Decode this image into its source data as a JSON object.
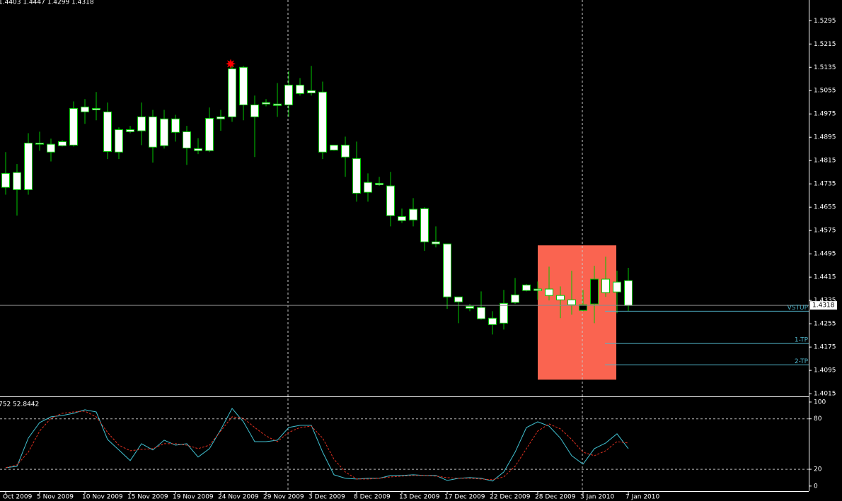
{
  "chart_data": [
    {
      "type": "candlestick",
      "title": "1.4403 1.4447 1.4299 1.4318",
      "categories": [
        "Oct 2009",
        null,
        null,
        "5 Nov 2009",
        null,
        null,
        null,
        "10 Nov 2009",
        null,
        null,
        null,
        "15 Nov 2009",
        null,
        null,
        null,
        "19 Nov 2009",
        null,
        null,
        null,
        "24 Nov 2009",
        null,
        null,
        null,
        "29 Nov 2009",
        null,
        null,
        null,
        "3 Dec 2009",
        null,
        null,
        null,
        "8 Dec 2009",
        null,
        null,
        null,
        "13 Dec 2009",
        null,
        null,
        null,
        "17 Dec 2009",
        null,
        null,
        null,
        "22 Dec 2009",
        null,
        null,
        null,
        "28 Dec 2009",
        null,
        null,
        null,
        "3 Jan 2010",
        null,
        null,
        null,
        "7 Jan 2010"
      ],
      "open": [
        1.4771,
        1.4774,
        1.4875,
        1.4875,
        1.4871,
        1.488,
        1.4994,
        1.4999,
        1.4994,
        1.4982,
        1.4921,
        1.4921,
        1.4965,
        1.4965,
        1.4958,
        1.4958,
        1.4914,
        1.4856,
        1.496,
        1.4965,
        1.513,
        1.5135,
        1.5006,
        1.5014,
        1.5009,
        1.5074,
        1.5074,
        1.5055,
        1.505,
        1.4868,
        1.4868,
        1.4822,
        1.474,
        1.4737,
        1.4728,
        1.4623,
        1.4648,
        1.465,
        1.4536,
        1.4529,
        1.4347,
        1.4315,
        1.4311,
        1.4274,
        1.4325,
        1.4354,
        1.4388,
        1.4374,
        1.4374,
        1.4352,
        1.4337,
        1.4301,
        1.4323,
        1.4408,
        1.4398,
        1.4403
      ],
      "high": [
        1.4844,
        1.4803,
        1.4909,
        1.4914,
        1.489,
        1.4885,
        1.5018,
        1.5026,
        1.505,
        1.5014,
        1.4929,
        1.4934,
        1.5014,
        1.4989,
        1.4989,
        1.4972,
        1.4934,
        1.4892,
        1.4997,
        1.4989,
        1.5147,
        1.514,
        1.5038,
        1.5026,
        1.5081,
        1.5123,
        1.5098,
        1.514,
        1.5086,
        1.4868,
        1.4897,
        1.488,
        1.4771,
        1.4759,
        1.4776,
        1.465,
        1.4686,
        1.4655,
        1.4589,
        1.4529,
        1.4347,
        1.4323,
        1.4366,
        1.4298,
        1.4371,
        1.4412,
        1.4391,
        1.44,
        1.4451,
        1.4383,
        1.4437,
        1.4371,
        1.4454,
        1.4485,
        1.4437,
        1.4447
      ],
      "low": [
        1.4698,
        1.4626,
        1.4698,
        1.4849,
        1.4812,
        1.4863,
        1.4863,
        1.4941,
        1.4953,
        1.482,
        1.482,
        1.4909,
        1.4868,
        1.4808,
        1.4856,
        1.488,
        1.48,
        1.4837,
        1.4844,
        1.4917,
        1.4948,
        1.4953,
        1.4827,
        1.5001,
        1.4965,
        1.4965,
        1.5038,
        1.5038,
        1.482,
        1.4849,
        1.4759,
        1.4674,
        1.4674,
        1.4728,
        1.4589,
        1.4601,
        1.4589,
        1.4505,
        1.4517,
        1.4306,
        1.4257,
        1.4298,
        1.4269,
        1.4218,
        1.4235,
        1.4323,
        1.4366,
        1.4337,
        1.4335,
        1.4274,
        1.4286,
        1.4298,
        1.4257,
        1.4347,
        1.4291,
        1.4299
      ],
      "close": [
        1.4723,
        1.4715,
        1.4715,
        1.4871,
        1.4844,
        1.4866,
        1.4868,
        1.4982,
        1.4989,
        1.4846,
        1.4844,
        1.4914,
        1.4917,
        1.4861,
        1.4866,
        1.4912,
        1.4858,
        1.4849,
        1.4849,
        1.4958,
        1.4965,
        1.5006,
        1.4965,
        1.5009,
        1.5004,
        1.5006,
        1.5045,
        1.5047,
        1.4844,
        1.4851,
        1.4827,
        1.4703,
        1.4706,
        1.4732,
        1.4626,
        1.4609,
        1.4611,
        1.4536,
        1.4529,
        1.4347,
        1.433,
        1.4308,
        1.4272,
        1.4252,
        1.4257,
        1.4328,
        1.4369,
        1.4369,
        1.4352,
        1.4337,
        1.432,
        1.432,
        1.4408,
        1.4362,
        1.4364,
        1.4318
      ],
      "up_color": "#000000",
      "down_color": "#ffffff",
      "wick_color": "#00c800",
      "ylim": [
        1.4008,
        1.5366
      ],
      "yticks": [
        1.5295,
        1.5215,
        1.5135,
        1.5055,
        1.4975,
        1.4895,
        1.4815,
        1.4735,
        1.4655,
        1.4575,
        1.4495,
        1.4415,
        1.4335,
        1.4255,
        1.4175,
        1.4095,
        1.4015
      ],
      "levels": [
        {
          "name": "VSTUP",
          "value": 1.4298
        },
        {
          "name": "1-TP",
          "value": 1.4187
        },
        {
          "name": "2-TP",
          "value": 1.4114
        }
      ],
      "level_color": "#4fb3c8",
      "zone": {
        "color": "#fa6450",
        "top": 1.4524,
        "bottom": 1.4063
      },
      "fractal": {
        "index": 20,
        "color": "#ff0000"
      }
    },
    {
      "type": "line",
      "title": "752 52.8442",
      "ylim": [
        -6,
        105
      ],
      "yticks": [
        0,
        20,
        80,
        100
      ],
      "levels": [
        20,
        80
      ],
      "series": [
        {
          "color": "#40c0d0",
          "dash": false,
          "values": [
            21.8,
            23.5,
            57.1,
            75.6,
            82.4,
            84.0,
            86.6,
            90.8,
            88.2,
            55.5,
            42.9,
            30.3,
            50.4,
            42.9,
            54.6,
            48.7,
            50.4,
            34.5,
            44.5,
            67.2,
            92.4,
            76.5,
            52.9,
            52.9,
            54.6,
            69.7,
            72.3,
            72.3,
            40.3,
            13.4,
            9.2,
            8.4,
            9.2,
            9.2,
            12.6,
            12.6,
            13.4,
            12.6,
            12.6,
            6.7,
            9.2,
            10.1,
            9.2,
            5.9,
            16.8,
            40.3,
            69.7,
            76.5,
            71.4,
            57.1,
            36.1,
            26.1,
            44.5,
            51.3,
            62.2,
            44.5
          ]
        },
        {
          "color": "#e03020",
          "dash": true,
          "values": [
            21.8,
            25.2,
            40.3,
            65.5,
            80.7,
            86.6,
            88.2,
            89.1,
            82.4,
            63.9,
            48.7,
            42.0,
            43.7,
            44.5,
            50.4,
            50.4,
            48.7,
            44.5,
            48.7,
            65.5,
            82.4,
            80.7,
            69.7,
            59.7,
            52.9,
            63.9,
            69.7,
            71.4,
            57.1,
            31.9,
            16.8,
            8.4,
            8.4,
            9.2,
            10.9,
            11.8,
            12.6,
            12.6,
            11.8,
            10.1,
            9.2,
            9.2,
            8.4,
            7.6,
            10.9,
            23.5,
            44.5,
            65.5,
            73.9,
            68.1,
            55.5,
            40.3,
            36.1,
            42.0,
            52.9,
            51.3
          ]
        }
      ]
    }
  ]
}
